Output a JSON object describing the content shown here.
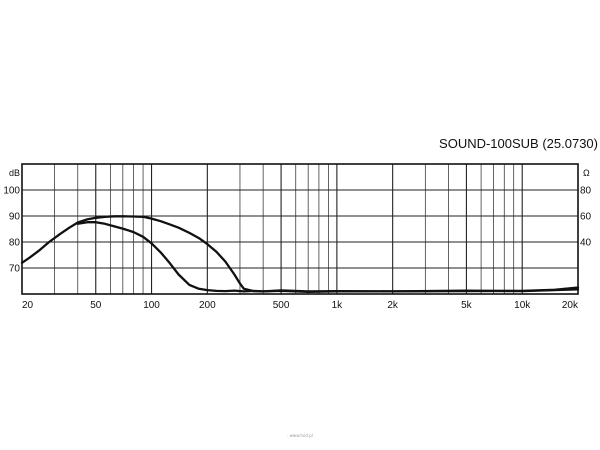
{
  "chart_data": {
    "type": "line",
    "title": "SOUND-100SUB (25.0730)",
    "x_scale": "log",
    "xlim": [
      20,
      20000
    ],
    "x_ticks": [
      20,
      50,
      100,
      200,
      500,
      1000,
      2000,
      5000,
      10000,
      20000
    ],
    "x_tick_labels": [
      "20",
      "50",
      "100",
      "200",
      "500",
      "1k",
      "2k",
      "5k",
      "10k",
      "20k"
    ],
    "left_axis": {
      "unit": "dB",
      "lim": [
        60,
        110
      ],
      "ticks": [
        70,
        80,
        90,
        100
      ],
      "tick_labels": [
        "70",
        "80",
        "90",
        "100"
      ]
    },
    "right_axis": {
      "unit": "Ω",
      "lim": [
        0,
        100
      ],
      "ticks": [
        40,
        60,
        80
      ],
      "tick_labels": [
        "40",
        "60",
        "80"
      ]
    },
    "grid": true,
    "series": [
      {
        "axis": "left",
        "x": [
          20,
          22,
          25,
          28,
          32,
          36,
          40,
          45,
          50,
          56,
          63,
          71,
          80,
          90,
          100,
          112,
          125,
          140,
          160,
          180,
          200,
          224,
          250,
          280,
          300,
          315,
          355,
          400,
          500,
          700,
          1000,
          2000,
          5000,
          10000,
          15000,
          20000
        ],
        "values": [
          72,
          74,
          77,
          80,
          83,
          85.5,
          87.5,
          88.7,
          89.3,
          89.7,
          89.9,
          89.9,
          89.8,
          89.7,
          89,
          88,
          86.8,
          85.5,
          83.5,
          81.5,
          79.2,
          76.2,
          72.5,
          67.5,
          64,
          62,
          61.1,
          61,
          61.2,
          60.8,
          61,
          61,
          61.1,
          61.2,
          61.6,
          62.5
        ]
      },
      {
        "axis": "left",
        "x": [
          40,
          45,
          50,
          56,
          63,
          71,
          80,
          90,
          100,
          112,
          125,
          140,
          160,
          180,
          200,
          224,
          250,
          280,
          315,
          355,
          400,
          500,
          700,
          1000,
          2000,
          5000,
          10000,
          20000
        ],
        "values": [
          87,
          87.6,
          87.6,
          87,
          86,
          85,
          83.8,
          82,
          79.5,
          76,
          72,
          67.5,
          63.5,
          62,
          61.5,
          61.2,
          61.1,
          61.3,
          61,
          61.2,
          61,
          61.4,
          61,
          61.1,
          61,
          61.3,
          61.1,
          61.8
        ]
      }
    ]
  },
  "footer_note": "· www.tvid.pl"
}
